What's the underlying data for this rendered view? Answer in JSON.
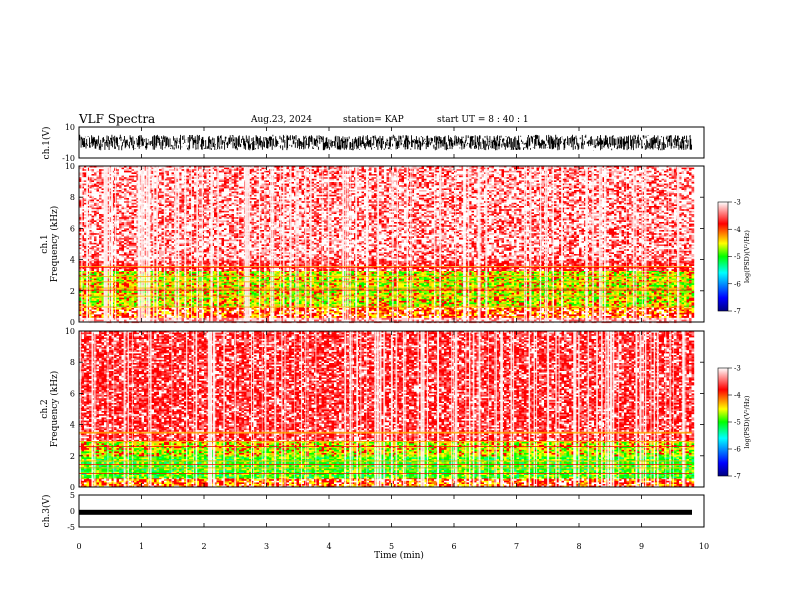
{
  "header": {
    "title": "VLF Spectra",
    "date": "Aug.23, 2024",
    "station": "station= KAP",
    "start": "start UT = 8 : 40 : 1"
  },
  "chart_data": [
    {
      "type": "line",
      "panel": "ch1-waveform",
      "ylabel": "ch.1(V)",
      "ylim": [
        -10,
        10
      ],
      "yticks": [
        10,
        -10
      ],
      "xlim": [
        0,
        10
      ],
      "description_range_v": [
        -5,
        5
      ]
    },
    {
      "type": "heatmap",
      "panel": "ch1-spectrogram",
      "ylabel": "ch.1 Frequency (kHz)",
      "ylim": [
        0,
        10
      ],
      "yticks": [
        0,
        2,
        4,
        6,
        8,
        10
      ],
      "xlim": [
        0,
        9.8
      ],
      "colorbar": {
        "label": "log(PSD)(V²/Hz)",
        "range": [
          -7,
          -3
        ],
        "ticks": [
          -3,
          -4,
          -5,
          -6,
          -7
        ],
        "colors": [
          "#000080",
          "#0000ff",
          "#00ffff",
          "#00ff00",
          "#ffff00",
          "#ff0000",
          "#ffffff"
        ]
      },
      "bands_khz": [
        {
          "from": 0.0,
          "to": 0.35,
          "level": "white"
        },
        {
          "from": 0.35,
          "to": 1.0,
          "level": "red-yellow"
        },
        {
          "from": 1.0,
          "to": 3.3,
          "level": "yellow-green"
        },
        {
          "from": 3.3,
          "to": 4.0,
          "level": "red"
        },
        {
          "from": 4.0,
          "to": 10.0,
          "level": "red-white"
        }
      ]
    },
    {
      "type": "heatmap",
      "panel": "ch2-spectrogram",
      "ylabel": "ch.2 Frequency (kHz)",
      "ylim": [
        0,
        10
      ],
      "yticks": [
        0,
        2,
        4,
        6,
        8,
        10
      ],
      "xlim": [
        0,
        9.8
      ],
      "colorbar": {
        "label": "log(PSD)(V²/Hz)",
        "range": [
          -7,
          -3
        ],
        "ticks": [
          -3,
          -4,
          -5,
          -6,
          -7
        ],
        "colors": [
          "#000080",
          "#0000ff",
          "#00ffff",
          "#00ff00",
          "#ffff00",
          "#ff0000",
          "#ffffff"
        ]
      },
      "bands_khz": [
        {
          "from": 0.0,
          "to": 0.6,
          "level": "red-yellow"
        },
        {
          "from": 0.6,
          "to": 2.0,
          "level": "green"
        },
        {
          "from": 2.0,
          "to": 3.0,
          "level": "yellow-green"
        },
        {
          "from": 3.0,
          "to": 10.0,
          "level": "red"
        }
      ]
    },
    {
      "type": "line",
      "panel": "ch3-waveform",
      "ylabel": "ch.3(V)",
      "ylim": [
        -5,
        5
      ],
      "yticks": [
        5,
        0,
        -5
      ],
      "xlim": [
        0,
        10
      ],
      "description_level_v": -0.4,
      "xlabel": "Time (min)",
      "xticks": [
        0,
        1,
        2,
        3,
        4,
        5,
        6,
        7,
        8,
        9,
        10
      ]
    }
  ]
}
